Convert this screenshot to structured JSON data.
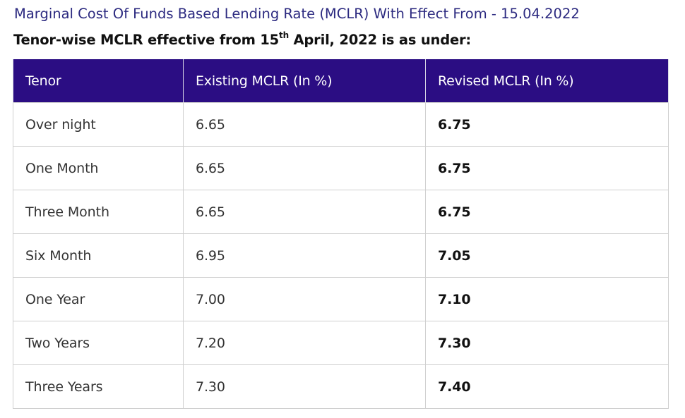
{
  "page": {
    "title": "Marginal Cost Of Funds Based Lending Rate (MCLR) With Effect From - 15.04.2022",
    "subtitle_pre": "Tenor-wise MCLR effective from 15",
    "subtitle_sup": "th",
    "subtitle_post": " April, 2022 is as under:"
  },
  "table": {
    "headers": [
      "Tenor",
      "Existing MCLR (In %)",
      "Revised MCLR (In %)"
    ],
    "rows": [
      {
        "tenor": "Over night",
        "existing": "6.65",
        "revised": "6.75"
      },
      {
        "tenor": "One Month",
        "existing": "6.65",
        "revised": "6.75"
      },
      {
        "tenor": "Three Month",
        "existing": "6.65",
        "revised": "6.75"
      },
      {
        "tenor": "Six Month",
        "existing": "6.95",
        "revised": "7.05"
      },
      {
        "tenor": "One Year",
        "existing": "7.00",
        "revised": "7.10"
      },
      {
        "tenor": "Two Years",
        "existing": "7.20",
        "revised": "7.30"
      },
      {
        "tenor": "Three Years",
        "existing": "7.30",
        "revised": "7.40"
      }
    ]
  },
  "colors": {
    "title": "#2c2a80",
    "header_bg": "#2b0d83",
    "header_text": "#ffffff"
  }
}
